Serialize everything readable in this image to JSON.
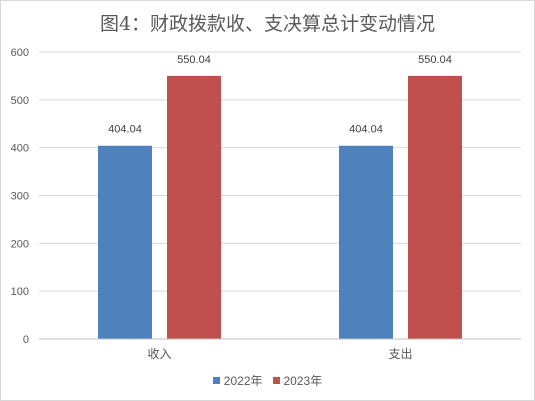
{
  "chart_data": {
    "type": "bar",
    "title": "图4：财政拨款收、支决算总计变动情况",
    "categories": [
      "收入",
      "支出"
    ],
    "series": [
      {
        "name": "2022年",
        "color": "#4f81bd",
        "values": [
          404.04,
          404.04
        ]
      },
      {
        "name": "2023年",
        "color": "#c0504d",
        "values": [
          550.04,
          550.04
        ]
      }
    ],
    "ylim": [
      0,
      600
    ],
    "yticks": [
      0,
      100,
      200,
      300,
      400,
      500,
      600
    ],
    "grid": true,
    "legend": "bottom",
    "xlabel": "",
    "ylabel": ""
  }
}
